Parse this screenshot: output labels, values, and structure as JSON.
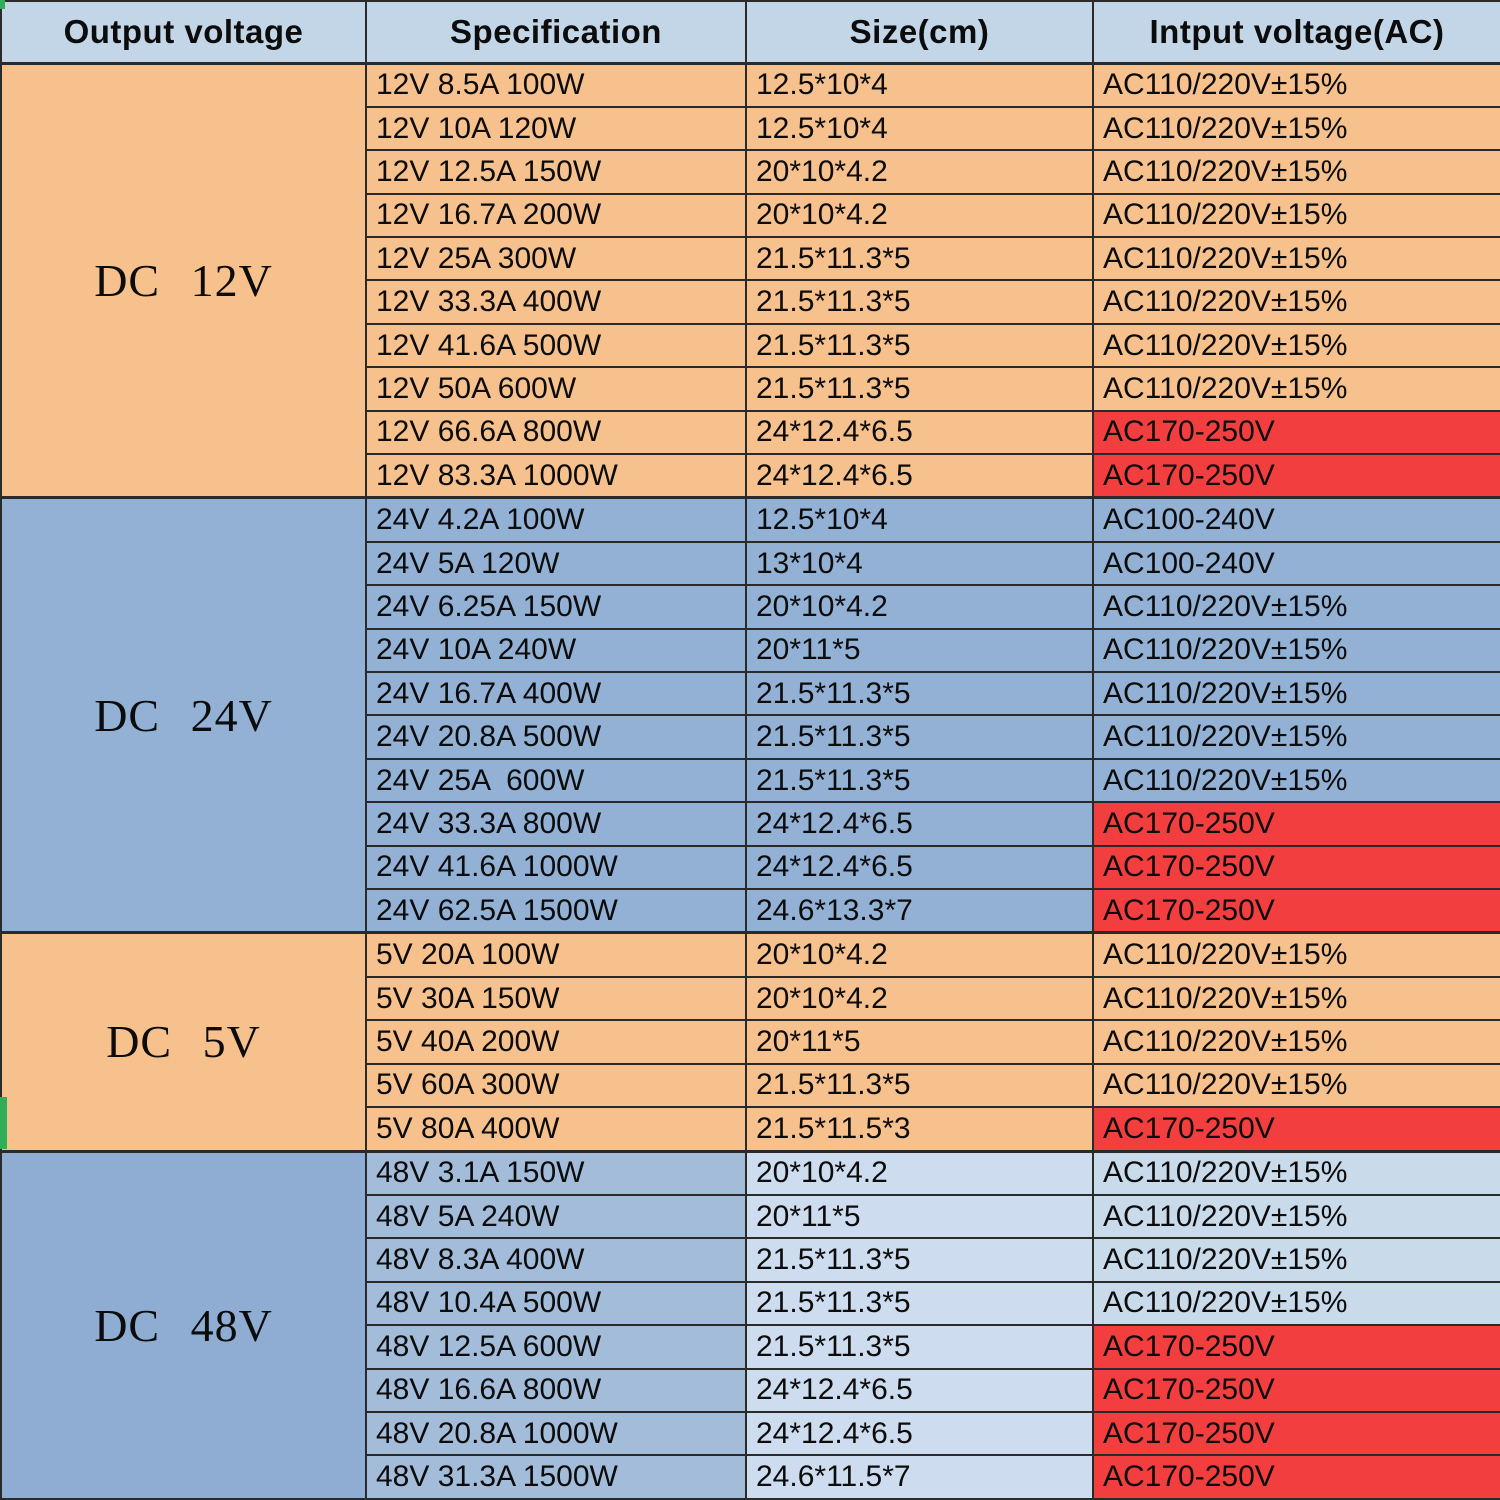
{
  "colors": {
    "page_bg": "#ffffff",
    "header_bg": "#c3d6e8",
    "border": "#2a2a2a",
    "text": "#0c0c0c",
    "red": "#f23e3e",
    "orange": "#f6c18d",
    "blue": "#93b1d5",
    "green_accent": "#2fae57"
  },
  "chart_data": {
    "type": "table",
    "columns": [
      "Output voltage",
      "Specification",
      "Size(cm)",
      "Intput voltage(AC)"
    ],
    "groups": [
      {
        "label": "DC 12V",
        "cell_colors": {
          "label": "#f6c18d",
          "spec": "#f6c18d",
          "size": "#f6c18d",
          "input": "#f6c18d"
        },
        "rows": [
          {
            "spec": "12V 8.5A 100W",
            "size": "12.5*10*4",
            "input": "AC110/220V±15%",
            "highlight": false
          },
          {
            "spec": "12V 10A 120W",
            "size": "12.5*10*4",
            "input": "AC110/220V±15%",
            "highlight": false
          },
          {
            "spec": "12V 12.5A 150W",
            "size": "20*10*4.2",
            "input": "AC110/220V±15%",
            "highlight": false
          },
          {
            "spec": "12V 16.7A 200W",
            "size": "20*10*4.2",
            "input": "AC110/220V±15%",
            "highlight": false
          },
          {
            "spec": "12V 25A 300W",
            "size": "21.5*11.3*5",
            "input": "AC110/220V±15%",
            "highlight": false
          },
          {
            "spec": "12V 33.3A 400W",
            "size": "21.5*11.3*5",
            "input": "AC110/220V±15%",
            "highlight": false
          },
          {
            "spec": "12V 41.6A 500W",
            "size": "21.5*11.3*5",
            "input": "AC110/220V±15%",
            "highlight": false
          },
          {
            "spec": "12V 50A 600W",
            "size": "21.5*11.3*5",
            "input": "AC110/220V±15%",
            "highlight": false
          },
          {
            "spec": "12V 66.6A 800W",
            "size": "24*12.4*6.5",
            "input": "AC170-250V",
            "highlight": true
          },
          {
            "spec": "12V 83.3A 1000W",
            "size": "24*12.4*6.5",
            "input": "AC170-250V",
            "highlight": true
          }
        ]
      },
      {
        "label": "DC 24V",
        "cell_colors": {
          "label": "#93b1d5",
          "spec": "#93b1d5",
          "size": "#93b1d5",
          "input": "#93b1d5"
        },
        "rows": [
          {
            "spec": "24V 4.2A 100W",
            "size": "12.5*10*4",
            "input": "AC100-240V",
            "highlight": false
          },
          {
            "spec": "24V 5A 120W",
            "size": "13*10*4",
            "input": "AC100-240V",
            "highlight": false
          },
          {
            "spec": "24V 6.25A 150W",
            "size": "20*10*4.2",
            "input": "AC110/220V±15%",
            "highlight": false
          },
          {
            "spec": "24V 10A 240W",
            "size": "20*11*5",
            "input": "AC110/220V±15%",
            "highlight": false
          },
          {
            "spec": "24V 16.7A 400W",
            "size": "21.5*11.3*5",
            "input": "AC110/220V±15%",
            "highlight": false
          },
          {
            "spec": "24V 20.8A 500W",
            "size": "21.5*11.3*5",
            "input": "AC110/220V±15%",
            "highlight": false
          },
          {
            "spec": "24V 25A  600W",
            "size": "21.5*11.3*5",
            "input": "AC110/220V±15%",
            "highlight": false
          },
          {
            "spec": "24V 33.3A 800W",
            "size": "24*12.4*6.5",
            "input": "AC170-250V",
            "highlight": true
          },
          {
            "spec": "24V 41.6A 1000W",
            "size": "24*12.4*6.5",
            "input": "AC170-250V",
            "highlight": true
          },
          {
            "spec": "24V 62.5A 1500W",
            "size": "24.6*13.3*7",
            "input": "AC170-250V",
            "highlight": true
          }
        ]
      },
      {
        "label": "DC 5V",
        "cell_colors": {
          "label": "#f6c18d",
          "spec": "#f6c18d",
          "size": "#f6c18d",
          "input": "#f6c18d"
        },
        "rows": [
          {
            "spec": "5V 20A 100W",
            "size": "20*10*4.2",
            "input": "AC110/220V±15%",
            "highlight": false
          },
          {
            "spec": "5V 30A 150W",
            "size": "20*10*4.2",
            "input": "AC110/220V±15%",
            "highlight": false
          },
          {
            "spec": "5V 40A 200W",
            "size": "20*11*5",
            "input": "AC110/220V±15%",
            "highlight": false
          },
          {
            "spec": "5V 60A 300W",
            "size": "21.5*11.3*5",
            "input": "AC110/220V±15%",
            "highlight": false
          },
          {
            "spec": "5V 80A 400W",
            "size": "21.5*11.5*3",
            "input": "AC170-250V",
            "highlight": true
          }
        ]
      },
      {
        "label": "DC 48V",
        "cell_colors": {
          "label": "#8fadd2",
          "spec": "#a2bcda",
          "size": "#cddcee",
          "input": "#c9daeb"
        },
        "rows": [
          {
            "spec": "48V 3.1A 150W",
            "size": "20*10*4.2",
            "input": "AC110/220V±15%",
            "highlight": false
          },
          {
            "spec": "48V 5A 240W",
            "size": "20*11*5",
            "input": "AC110/220V±15%",
            "highlight": false
          },
          {
            "spec": "48V 8.3A 400W",
            "size": "21.5*11.3*5",
            "input": "AC110/220V±15%",
            "highlight": false
          },
          {
            "spec": "48V 10.4A 500W",
            "size": "21.5*11.3*5",
            "input": "AC110/220V±15%",
            "highlight": false
          },
          {
            "spec": "48V 12.5A 600W",
            "size": "21.5*11.3*5",
            "input": "AC170-250V",
            "highlight": true
          },
          {
            "spec": "48V 16.6A 800W",
            "size": "24*12.4*6.5",
            "input": "AC170-250V",
            "highlight": true
          },
          {
            "spec": "48V 20.8A 1000W",
            "size": "24*12.4*6.5",
            "input": "AC170-250V",
            "highlight": true
          },
          {
            "spec": "48V 31.3A 1500W",
            "size": "24.6*11.5*7",
            "input": "AC170-250V",
            "highlight": true
          }
        ]
      }
    ]
  }
}
